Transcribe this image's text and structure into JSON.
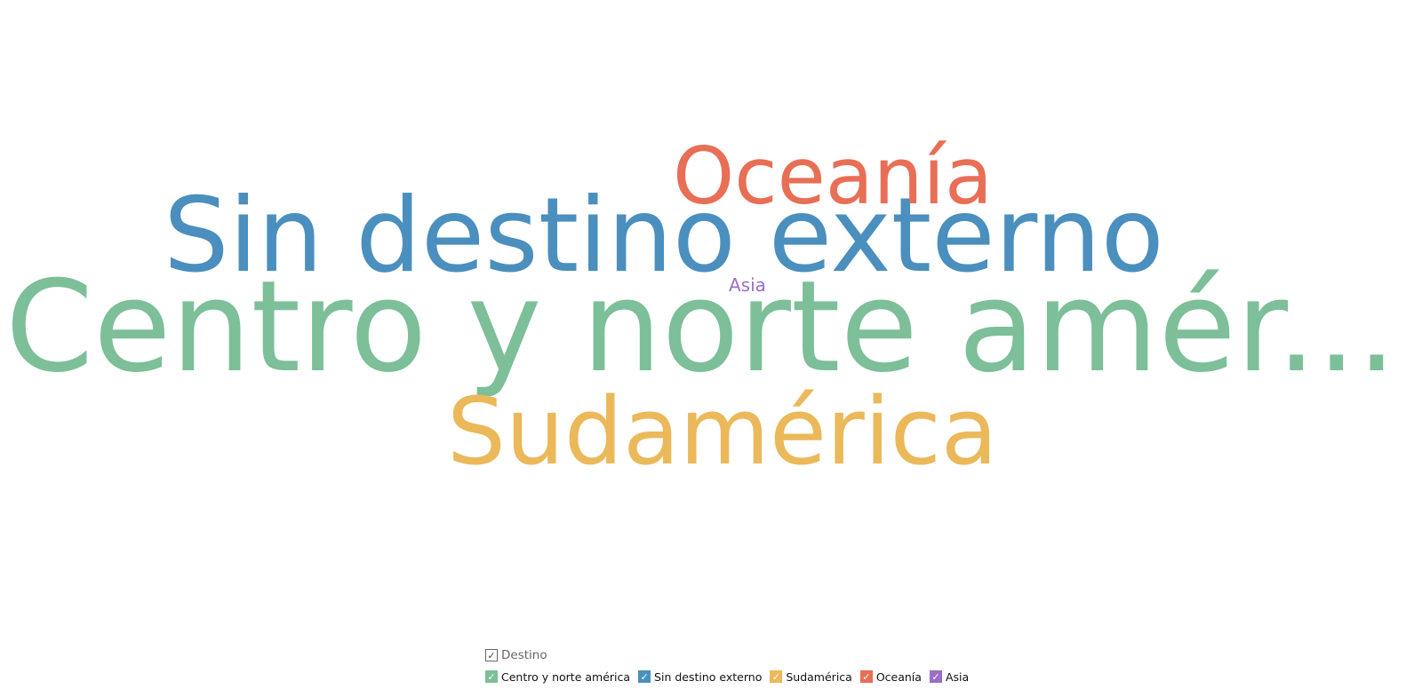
{
  "chart_data": {
    "type": "wordcloud",
    "legend": {
      "title": "Destino",
      "placement": "bottom"
    },
    "words": [
      {
        "text": "Centro y norte amér...",
        "legend_label": "Centro y norte américa",
        "weight": 100,
        "color": "#7cbf98"
      },
      {
        "text": "Sin destino externo",
        "legend_label": "Sin destino externo",
        "weight": 78,
        "color": "#4a8fbe"
      },
      {
        "text": "Sudamérica",
        "legend_label": "Sudamérica",
        "weight": 70,
        "color": "#ebb85a"
      },
      {
        "text": "Oceanía",
        "legend_label": "Oceanía",
        "weight": 58,
        "color": "#e86e55"
      },
      {
        "text": "Asia",
        "legend_label": "Asia",
        "weight": 14,
        "color": "#9b6fc6"
      }
    ]
  },
  "icons": {
    "checkbox": "check-icon",
    "check_glyph": "✓"
  }
}
